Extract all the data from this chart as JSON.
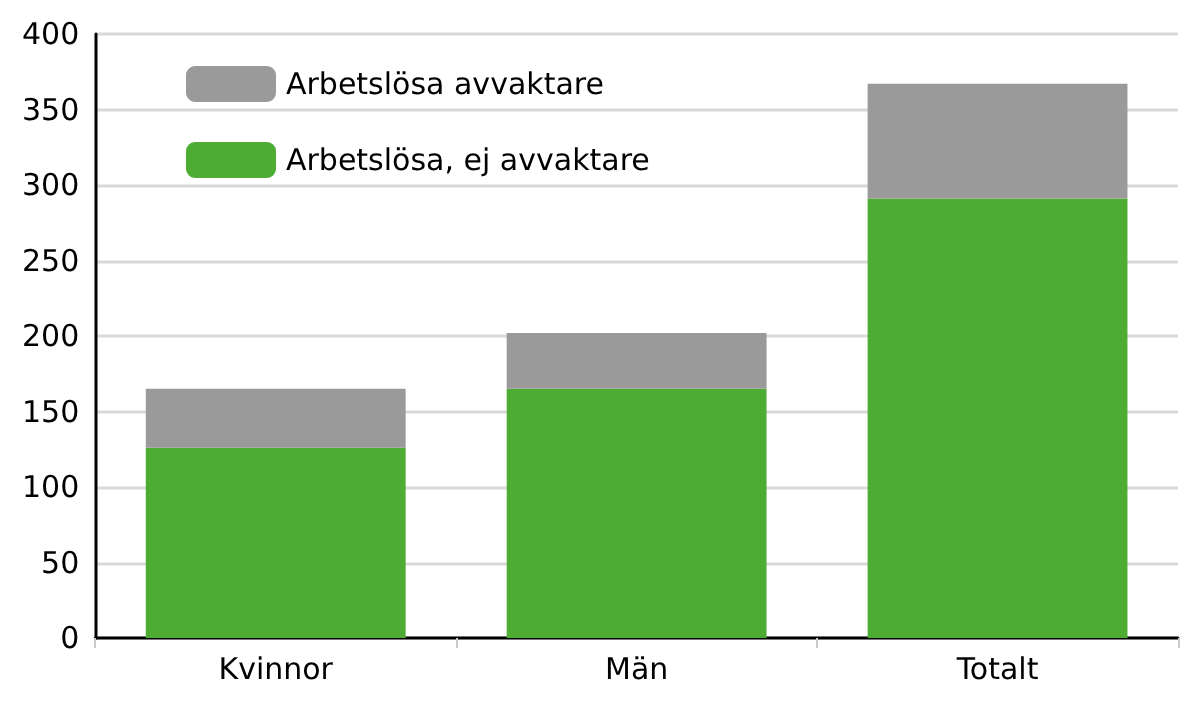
{
  "chart_data": {
    "type": "bar",
    "stacked": true,
    "categories": [
      "Kvinnor",
      "Män",
      "Totalt"
    ],
    "series": [
      {
        "name": "Arbetslösa, ej avvaktare",
        "color": "#4dac34",
        "values": [
          126,
          165,
          291
        ]
      },
      {
        "name": "Arbetslösa avvaktare",
        "color": "#9a9a9a",
        "values": [
          39,
          37,
          76
        ]
      }
    ],
    "ylim": [
      0,
      400
    ],
    "yticks": [
      0,
      50,
      100,
      150,
      200,
      250,
      300,
      350,
      400
    ],
    "grid": "y",
    "legend": "top left"
  }
}
